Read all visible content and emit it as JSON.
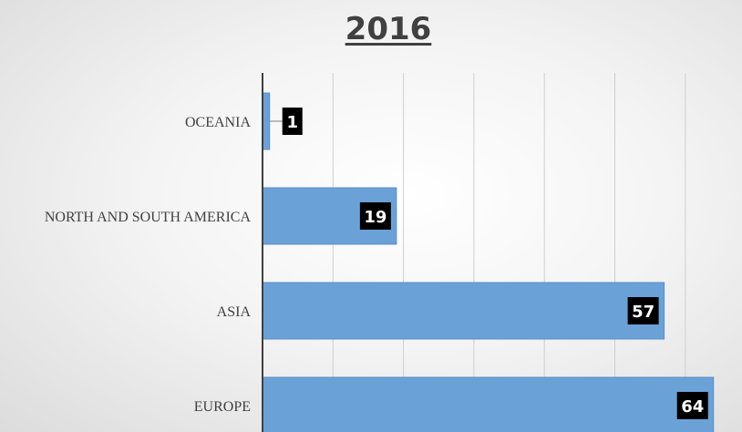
{
  "chart_data": {
    "type": "bar",
    "orientation": "horizontal",
    "title": "2016",
    "categories": [
      "OCEANIA",
      "NORTH AND SOUTH AMERICA",
      "ASIA",
      "EUROPE"
    ],
    "values": [
      1,
      19,
      57,
      64
    ],
    "xlim": [
      0,
      65
    ],
    "grid": true,
    "legend": "none",
    "colors": {
      "bar": "#6aa2d8",
      "bar_edge": "#5b8fc4",
      "label_bg": "#000000",
      "label_text": "#ffffff",
      "grid": "#cfcfcf",
      "axis": "#404040"
    }
  }
}
